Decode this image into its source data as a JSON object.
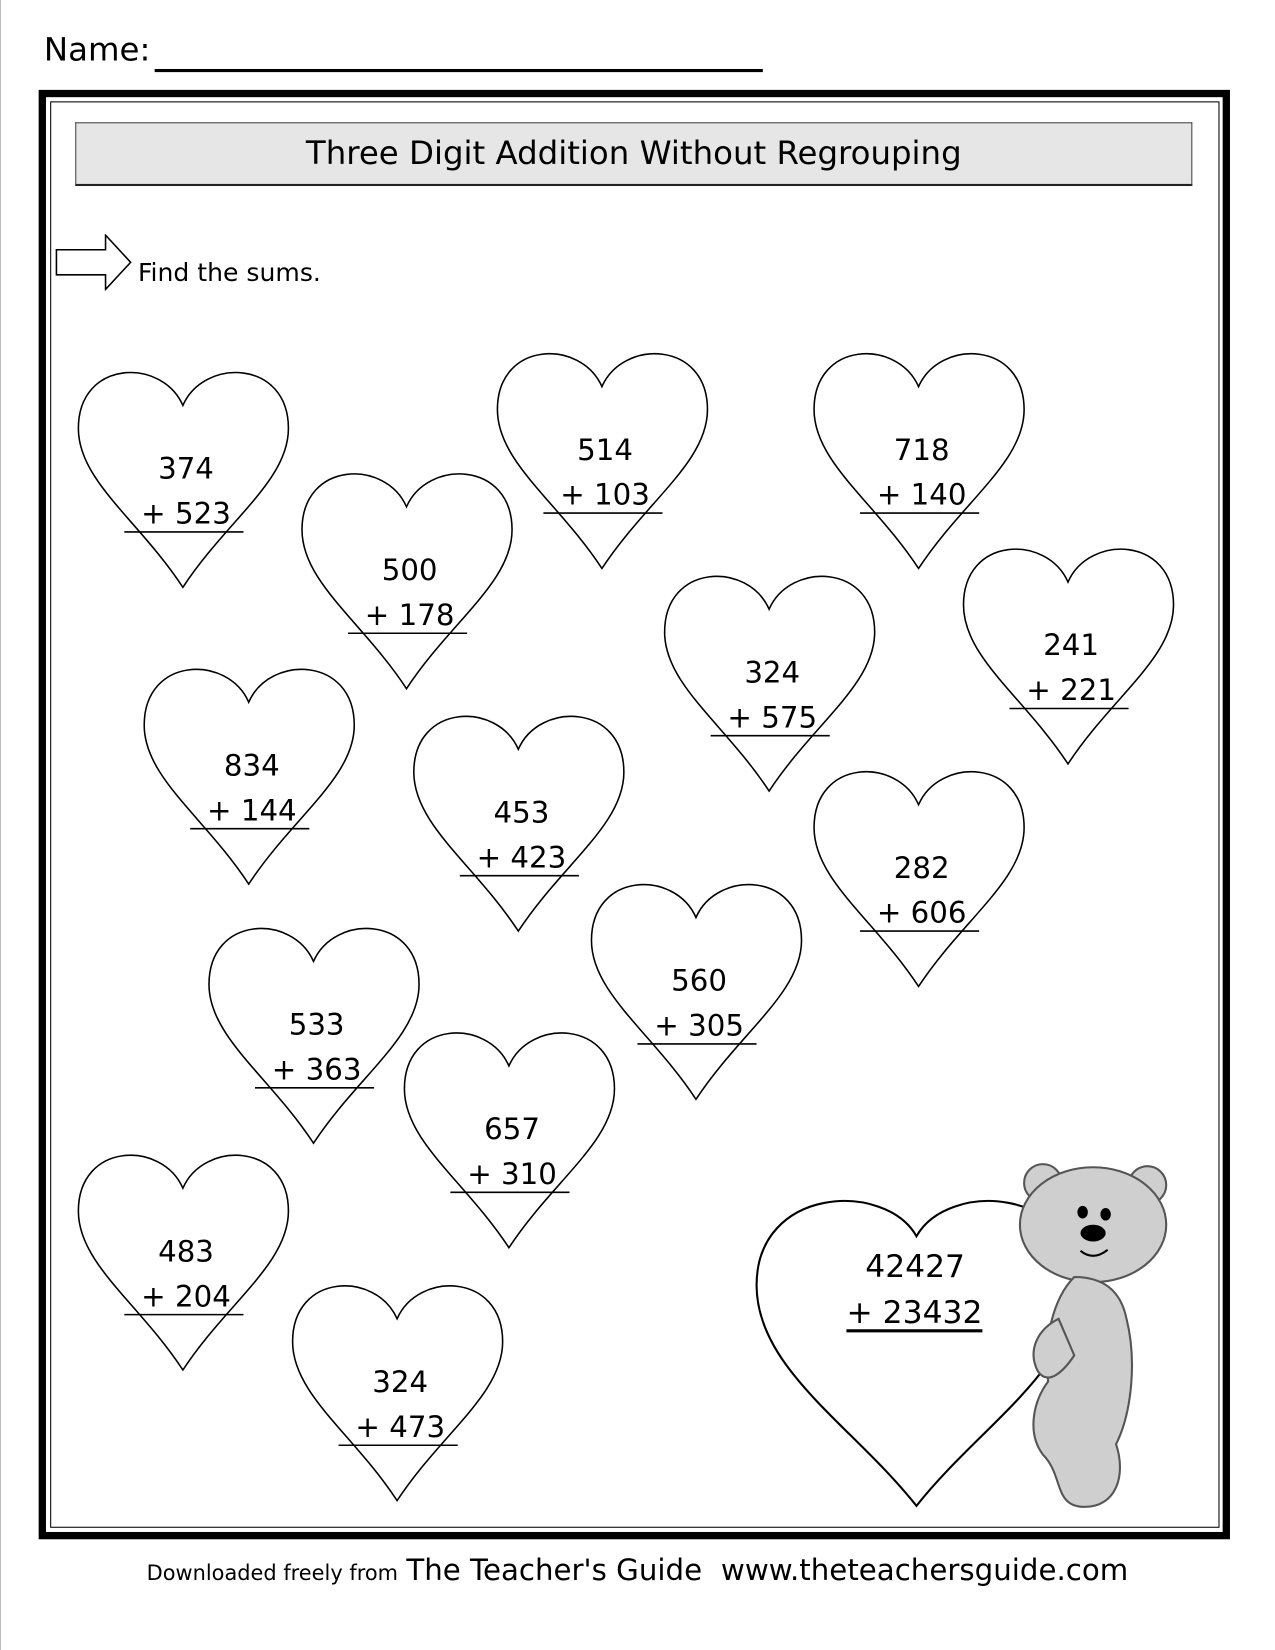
{
  "header": {
    "name_label": "Name:"
  },
  "title": "Three Digit Addition Without Regrouping",
  "instruction": {
    "icon": "arrow-right-icon",
    "text": "Find the sums."
  },
  "problems": [
    {
      "top": "374",
      "bottom": "+ 523"
    },
    {
      "top": "500",
      "bottom": "+ 178"
    },
    {
      "top": "514",
      "bottom": "+ 103"
    },
    {
      "top": "718",
      "bottom": "+ 140"
    },
    {
      "top": "324",
      "bottom": "+ 575"
    },
    {
      "top": "241",
      "bottom": "+ 221"
    },
    {
      "top": "834",
      "bottom": "+ 144"
    },
    {
      "top": "453",
      "bottom": "+ 423"
    },
    {
      "top": "282",
      "bottom": "+ 606"
    },
    {
      "top": "560",
      "bottom": "+ 305"
    },
    {
      "top": "533",
      "bottom": "+ 363"
    },
    {
      "top": "657",
      "bottom": "+ 310"
    },
    {
      "top": "483",
      "bottom": "+ 204"
    },
    {
      "top": "324",
      "bottom": "+ 473"
    }
  ],
  "bonus_problem": {
    "top": "42427",
    "bottom": "+ 23432",
    "illustration": "teddy-bear-holding-heart"
  },
  "footer": {
    "prefix": "Downloaded freely from",
    "brand": "The Teacher's Guide",
    "url": "www.theteachersguide.com"
  }
}
